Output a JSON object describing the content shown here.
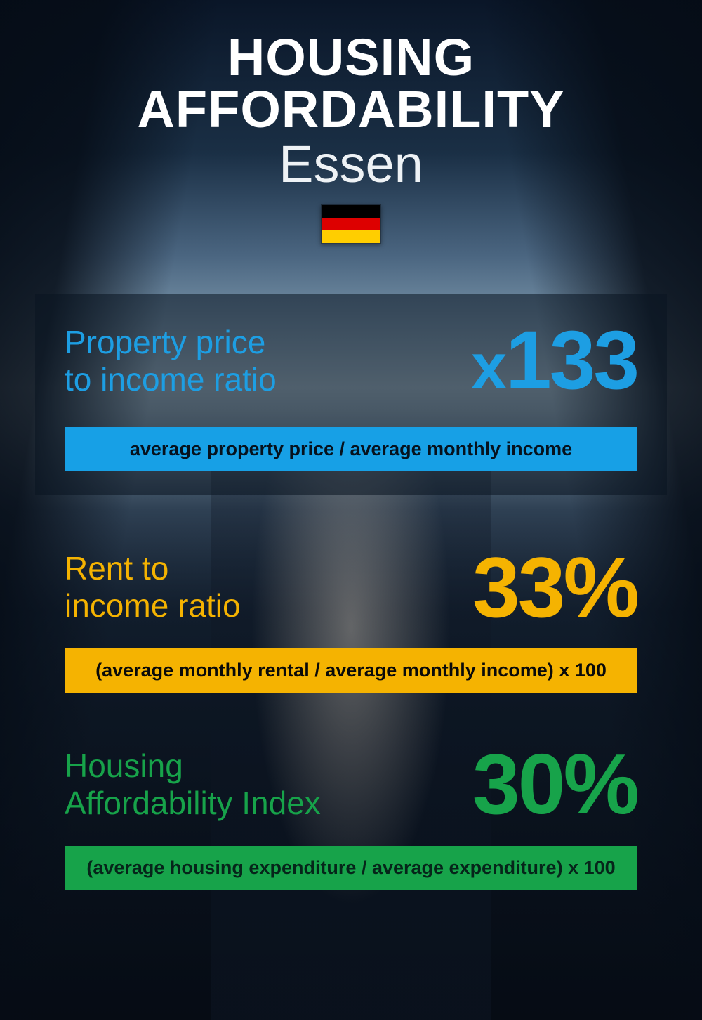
{
  "header": {
    "title": "HOUSING AFFORDABILITY",
    "subtitle": "Essen",
    "flag_colors": [
      "#000000",
      "#dd0000",
      "#ffce00"
    ]
  },
  "metrics": [
    {
      "key": "property-price-ratio",
      "label": "Property price\nto income ratio",
      "value_prefix": "x",
      "value": "133",
      "formula": "average property price / average monthly income",
      "accent_text": "#1d9ee3",
      "accent_bg": "#17a0e6",
      "formula_text_color": "#06121e",
      "label_fontsize": 46,
      "value_fontsize": 118,
      "in_card": true
    },
    {
      "key": "rent-income-ratio",
      "label": "Rent to\nincome ratio",
      "value_prefix": "",
      "value": "33%",
      "formula": "(average monthly rental / average monthly income) x 100",
      "accent_text": "#f5b301",
      "accent_bg": "#f5b301",
      "formula_text_color": "#0a0a0a",
      "label_fontsize": 46,
      "value_fontsize": 122,
      "in_card": false
    },
    {
      "key": "affordability-index",
      "label": "Housing\nAffordability Index",
      "value_prefix": "",
      "value": "30%",
      "formula": "(average housing expenditure / average expenditure) x 100",
      "accent_text": "#17a34a",
      "accent_bg": "#17a34a",
      "formula_text_color": "#06251a",
      "label_fontsize": 46,
      "value_fontsize": 122,
      "in_card": false
    }
  ],
  "background": {
    "top_gradient": [
      "#0a1628",
      "#1a2f45",
      "#4a6580",
      "#a5bbc8"
    ],
    "bottom_color": "#0d1a2a",
    "card_overlay": "rgba(10,20,32,0.55)"
  },
  "typography": {
    "title_fontsize": 74,
    "subtitle_fontsize": 74,
    "formula_fontsize": 27
  }
}
